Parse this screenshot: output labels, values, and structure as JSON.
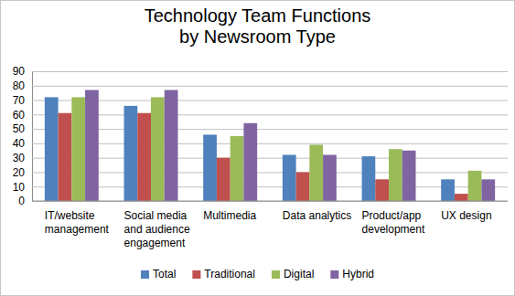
{
  "chart_data": {
    "type": "bar",
    "title": [
      "Technology Team Functions",
      "by Newsroom Type"
    ],
    "categories": [
      "IT/website management",
      "Social media and audience engagement",
      "Multimedia",
      "Data analytics",
      "Product/app development",
      "UX design"
    ],
    "series": [
      {
        "name": "Total",
        "color": "#4f81bd",
        "values": [
          72,
          66,
          46,
          32,
          31,
          15
        ]
      },
      {
        "name": "Traditional",
        "color": "#c0504d",
        "values": [
          61,
          61,
          30,
          20,
          15,
          5
        ]
      },
      {
        "name": "Digital",
        "color": "#9bbb59",
        "values": [
          72,
          72,
          45,
          39,
          36,
          21
        ]
      },
      {
        "name": "Hybrid",
        "color": "#8064a2",
        "values": [
          77,
          77,
          54,
          32,
          35,
          15
        ]
      }
    ],
    "ylim": [
      0,
      90
    ],
    "yticks": [
      0,
      10,
      20,
      30,
      40,
      50,
      60,
      70,
      80,
      90
    ],
    "grid": true,
    "legend": "bottom"
  }
}
